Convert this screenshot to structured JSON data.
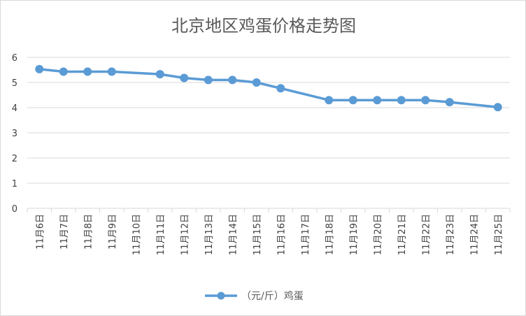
{
  "chart_data": {
    "type": "line",
    "title": "北京地区鸡蛋价格走势图",
    "categories": [
      "11月6日",
      "11月7日",
      "11月8日",
      "11月9日",
      "11月10日",
      "11月11日",
      "11月12日",
      "11月13日",
      "11月14日",
      "11月15日",
      "11月16日",
      "11月17日",
      "11月18日",
      "11月19日",
      "11月20日",
      "11月21日",
      "11月22日",
      "11月23日",
      "11月24日",
      "11月25日"
    ],
    "series": [
      {
        "name": "（元/斤）鸡蛋",
        "color": "#5b9bd5",
        "values": [
          5.53,
          5.43,
          5.43,
          5.43,
          null,
          5.33,
          5.18,
          5.1,
          5.1,
          5.0,
          4.77,
          null,
          4.3,
          4.3,
          4.3,
          4.3,
          4.3,
          4.22,
          null,
          4.02
        ]
      }
    ],
    "yticks": [
      "0",
      "1",
      "2",
      "3",
      "4",
      "5",
      "6"
    ],
    "ylim": [
      0,
      6
    ],
    "grid": true,
    "legend": "bottom"
  }
}
